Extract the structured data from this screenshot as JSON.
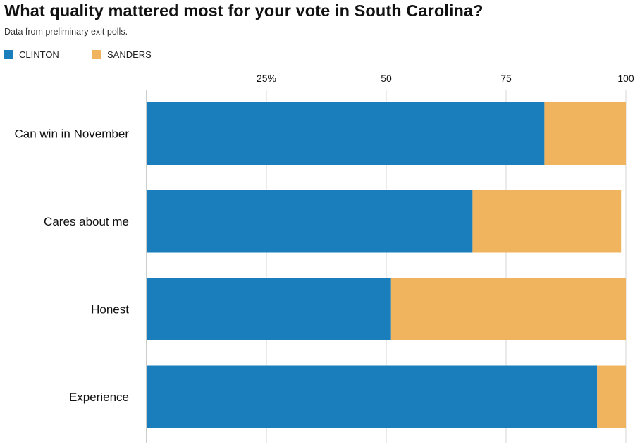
{
  "colors": {
    "clinton": "#1a7ebd",
    "sanders": "#f0b45e",
    "grid": "#d4d4d4",
    "axis": "#9a9a9a"
  },
  "chart_data": {
    "type": "bar",
    "orientation": "horizontal",
    "stacked": true,
    "title": "What quality mattered most for your vote in South Carolina?",
    "subtitle": "Data from preliminary exit polls.",
    "categories": [
      "Can win in November",
      "Cares about me",
      "Honest",
      "Experience"
    ],
    "series": [
      {
        "name": "CLINTON",
        "color": "#1a7ebd",
        "values": [
          83,
          68,
          51,
          94
        ]
      },
      {
        "name": "SANDERS",
        "color": "#f0b45e",
        "values": [
          17,
          31,
          49,
          6
        ]
      }
    ],
    "xlim": [
      0,
      100
    ],
    "xticks": [
      25,
      50,
      75,
      100
    ],
    "xtick_labels": [
      "25%",
      "50",
      "75",
      "100"
    ],
    "grid": true,
    "legend_position": "top-left"
  }
}
